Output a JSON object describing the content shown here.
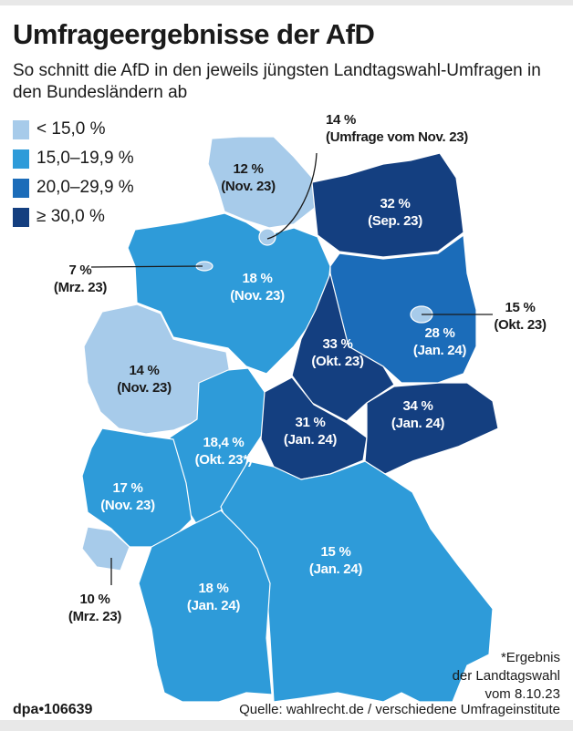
{
  "title": "Umfrageergebnisse der AfD",
  "subtitle": "So schnitt die AfD in den jeweils jüngsten Landtagswahl-Umfragen in den Bundesländern ab",
  "colors": {
    "light": "#a7cbea",
    "mid": "#2e9bd9",
    "darkmid": "#1b6cb9",
    "dark": "#143f80"
  },
  "legend": [
    {
      "label": "< 15,0 %",
      "color": "#a7cbea"
    },
    {
      "label": "15,0–19,9 %",
      "color": "#2e9bd9"
    },
    {
      "label": "20,0–29,9 %",
      "color": "#1b6cb9"
    },
    {
      "label": "≥ 30,0 %",
      "color": "#143f80"
    }
  ],
  "states": {
    "sh": {
      "value": "12 %",
      "date": "(Nov. 23)"
    },
    "hh": {
      "value": "14 %",
      "date": "(Umfrage vom Nov. 23)"
    },
    "mv": {
      "value": "32 %",
      "date": "(Sep. 23)"
    },
    "hb": {
      "value": "7 %",
      "date": "(Mrz. 23)"
    },
    "ni": {
      "value": "18 %",
      "date": "(Nov. 23)"
    },
    "be": {
      "value": "15 %",
      "date": "(Okt. 23)"
    },
    "bb": {
      "value": "28 %",
      "date": "(Jan. 24)"
    },
    "st": {
      "value": "33 %",
      "date": "(Okt. 23)"
    },
    "nw": {
      "value": "14 %",
      "date": "(Nov. 23)"
    },
    "sn": {
      "value": "34 %",
      "date": "(Jan. 24)"
    },
    "th": {
      "value": "31 %",
      "date": "(Jan. 24)"
    },
    "he": {
      "value": "18,4 %",
      "date": "(Okt. 23*)"
    },
    "rp": {
      "value": "17 %",
      "date": "(Nov. 23)"
    },
    "by": {
      "value": "15 %",
      "date": "(Jan. 24)"
    },
    "sl": {
      "value": "10 %",
      "date": "(Mrz. 23)"
    },
    "bw": {
      "value": "18 %",
      "date": "(Jan. 24)"
    }
  },
  "note": [
    "*Ergebnis",
    "der Landtagswahl",
    "vom 8.10.23"
  ],
  "credit": "dpa•106639",
  "source": "Quelle: wahlrecht.de / verschiedene Umfrageinstitute"
}
